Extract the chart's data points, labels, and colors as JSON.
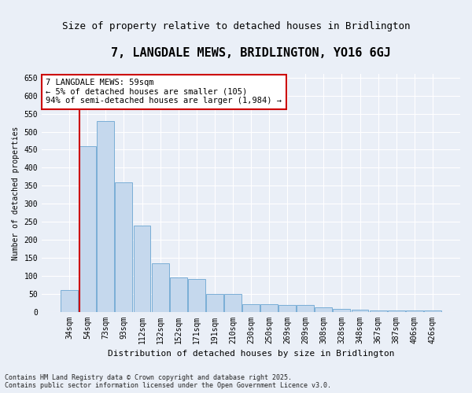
{
  "title": "7, LANGDALE MEWS, BRIDLINGTON, YO16 6GJ",
  "subtitle": "Size of property relative to detached houses in Bridlington",
  "xlabel": "Distribution of detached houses by size in Bridlington",
  "ylabel": "Number of detached properties",
  "footnote1": "Contains HM Land Registry data © Crown copyright and database right 2025.",
  "footnote2": "Contains public sector information licensed under the Open Government Licence v3.0.",
  "categories": [
    "34sqm",
    "54sqm",
    "73sqm",
    "93sqm",
    "112sqm",
    "132sqm",
    "152sqm",
    "171sqm",
    "191sqm",
    "210sqm",
    "230sqm",
    "250sqm",
    "269sqm",
    "289sqm",
    "308sqm",
    "328sqm",
    "348sqm",
    "367sqm",
    "387sqm",
    "406sqm",
    "426sqm"
  ],
  "values": [
    60,
    460,
    530,
    360,
    240,
    135,
    95,
    90,
    50,
    50,
    20,
    20,
    18,
    18,
    12,
    8,
    5,
    4,
    4,
    4,
    4
  ],
  "bar_color": "#c5d8ed",
  "bar_edge_color": "#7aaed6",
  "annotation_text": "7 LANGDALE MEWS: 59sqm\n← 5% of detached houses are smaller (105)\n94% of semi-detached houses are larger (1,984) →",
  "annotation_box_color": "#ffffff",
  "annotation_box_edge_color": "#cc0000",
  "vline_color": "#cc0000",
  "vline_x_index": 0.55,
  "ylim": [
    0,
    660
  ],
  "yticks": [
    0,
    50,
    100,
    150,
    200,
    250,
    300,
    350,
    400,
    450,
    500,
    550,
    600,
    650
  ],
  "bg_color": "#eaeff7",
  "plot_bg_color": "#eaeff7",
  "title_fontsize": 11,
  "subtitle_fontsize": 9,
  "xlabel_fontsize": 8,
  "ylabel_fontsize": 7,
  "tick_fontsize": 7,
  "annot_fontsize": 7.5,
  "footnote_fontsize": 6
}
